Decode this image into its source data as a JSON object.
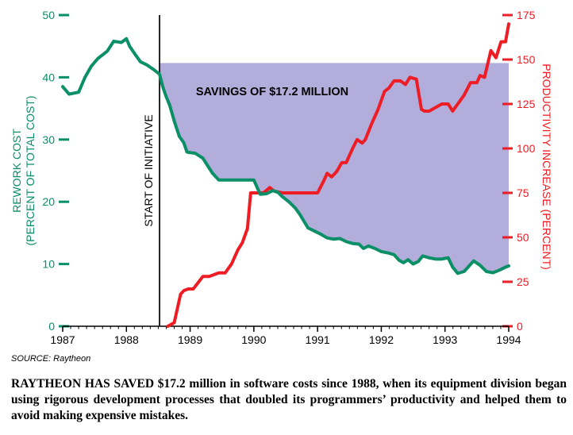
{
  "chart_data": {
    "type": "line",
    "x_ticks": [
      "1987",
      "1988",
      "1989",
      "1990",
      "1991",
      "1992",
      "1993",
      "1994"
    ],
    "xlim": [
      1987,
      1994
    ],
    "left_axis": {
      "label_line1": "REWORK COST",
      "label_line2": "(PERCENT OF TOTAL COST)",
      "ylim": [
        0,
        50
      ],
      "ticks": [
        "0",
        "10",
        "20",
        "30",
        "40",
        "50"
      ],
      "color": "#0a8f66"
    },
    "right_axis": {
      "label": "PRODUCTIVITY INCREASE (PERCENT)",
      "ylim": [
        0,
        175
      ],
      "ticks": [
        "0",
        "25",
        "50",
        "75",
        "100",
        "125",
        "150",
        "175"
      ],
      "color": "#ee1c25"
    },
    "annotations": {
      "initiative": "START OF INITIATIVE",
      "initiative_x": 1988.52,
      "savings": "SAVINGS OF $17.2 MILLION",
      "savings_level": 42.3,
      "savings_color": "#b3addb"
    },
    "series": [
      {
        "name": "Rework cost",
        "axis": "left",
        "color": "#0a8f66",
        "x": [
          1987.0,
          1987.1,
          1987.25,
          1987.35,
          1987.45,
          1987.55,
          1987.7,
          1987.8,
          1987.92,
          1988.0,
          1988.05,
          1988.15,
          1988.22,
          1988.32,
          1988.42,
          1988.52,
          1988.57,
          1988.62,
          1988.68,
          1988.75,
          1988.83,
          1988.9,
          1988.95,
          1989.0,
          1989.08,
          1989.2,
          1989.35,
          1989.45,
          1989.6,
          1989.7,
          1989.85,
          1990.0,
          1990.1,
          1990.2,
          1990.3,
          1990.38,
          1990.45,
          1990.55,
          1990.65,
          1990.72,
          1990.85,
          1990.95,
          1991.05,
          1991.15,
          1991.25,
          1991.35,
          1991.45,
          1991.55,
          1991.65,
          1991.72,
          1991.8,
          1991.9,
          1992.0,
          1992.1,
          1992.2,
          1992.28,
          1992.35,
          1992.42,
          1992.5,
          1992.58,
          1992.65,
          1992.75,
          1992.85,
          1992.95,
          1993.05,
          1993.12,
          1993.2,
          1993.3,
          1993.45,
          1993.55,
          1993.65,
          1993.75,
          1993.85,
          1993.95,
          1994.0
        ],
        "y": [
          38.5,
          37.3,
          37.6,
          40.0,
          41.8,
          43.0,
          44.2,
          45.8,
          45.6,
          46.2,
          45.0,
          43.5,
          42.5,
          42.0,
          41.3,
          40.5,
          38.5,
          37.0,
          35.5,
          33.0,
          30.5,
          29.5,
          28.0,
          27.9,
          27.8,
          27.0,
          24.6,
          23.5,
          23.5,
          23.5,
          23.5,
          23.5,
          21.2,
          21.3,
          21.8,
          21.5,
          20.8,
          20.0,
          19.0,
          18.0,
          15.8,
          15.3,
          14.8,
          14.2,
          14.0,
          14.1,
          13.6,
          13.3,
          13.2,
          12.5,
          12.9,
          12.5,
          12.0,
          11.8,
          11.5,
          10.6,
          10.2,
          10.7,
          10.0,
          10.4,
          11.3,
          11.0,
          10.8,
          10.8,
          11.0,
          9.5,
          8.5,
          8.8,
          10.5,
          9.8,
          8.8,
          8.6,
          9.0,
          9.5,
          9.7
        ]
      },
      {
        "name": "Productivity increase",
        "axis": "right",
        "color": "#ee1c25",
        "x": [
          1988.65,
          1988.75,
          1988.85,
          1988.9,
          1988.97,
          1989.05,
          1989.2,
          1989.3,
          1989.45,
          1989.55,
          1989.65,
          1989.75,
          1989.82,
          1989.9,
          1989.95,
          1990.0,
          1990.05,
          1990.15,
          1990.25,
          1990.32,
          1990.45,
          1990.6,
          1990.75,
          1990.92,
          1991.0,
          1991.1,
          1991.15,
          1991.22,
          1991.3,
          1991.38,
          1991.45,
          1991.55,
          1991.62,
          1991.7,
          1991.75,
          1991.85,
          1991.95,
          1992.05,
          1992.12,
          1992.2,
          1992.3,
          1992.38,
          1992.45,
          1992.55,
          1992.63,
          1992.68,
          1992.75,
          1992.85,
          1992.95,
          1993.05,
          1993.12,
          1993.2,
          1993.3,
          1993.4,
          1993.5,
          1993.55,
          1993.62,
          1993.72,
          1993.8,
          1993.88,
          1993.95,
          1994.0
        ],
        "y": [
          0,
          2,
          18,
          20,
          21,
          21,
          28,
          28,
          30,
          30,
          35,
          43,
          47,
          55,
          75,
          75,
          75,
          75,
          78,
          76,
          75,
          75,
          75,
          75,
          75,
          82,
          86,
          84,
          87,
          92,
          92,
          100,
          105,
          103,
          105,
          114,
          122,
          132,
          134,
          138,
          138,
          136,
          140,
          139,
          122,
          121,
          121,
          123,
          125,
          125,
          121,
          125,
          130,
          137,
          137,
          141,
          140,
          155,
          151,
          160,
          160,
          170
        ]
      }
    ]
  },
  "footer": {
    "source": "SOURCE: Raytheon",
    "caption": "RAYTHEON HAS SAVED $17.2 million in software costs since 1988, when its equipment division began using rigorous development processes that doubled its programmers’ productivity and helped them to avoid making expensive mistakes."
  }
}
